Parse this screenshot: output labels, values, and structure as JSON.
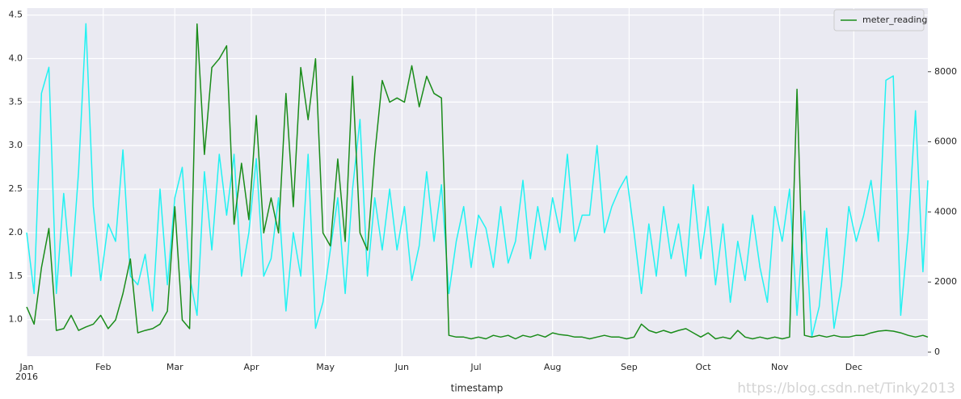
{
  "chart_data": {
    "type": "line",
    "xlabel": "timestamp",
    "x_year": "2016",
    "watermark": "https://blog.csdn.net/Tinky2013",
    "x": [
      0,
      3,
      6,
      9,
      12,
      15,
      18,
      21,
      24,
      27,
      30,
      33,
      36,
      39,
      42,
      45,
      48,
      51,
      54,
      57,
      60,
      63,
      66,
      69,
      72,
      75,
      78,
      81,
      84,
      87,
      90,
      93,
      96,
      99,
      102,
      105,
      108,
      111,
      114,
      117,
      120,
      123,
      126,
      129,
      132,
      135,
      138,
      141,
      144,
      147,
      150,
      153,
      156,
      159,
      162,
      165,
      168,
      171,
      174,
      177,
      180,
      183,
      186,
      189,
      192,
      195,
      198,
      201,
      204,
      207,
      210,
      213,
      216,
      219,
      222,
      225,
      228,
      231,
      234,
      237,
      240,
      243,
      246,
      249,
      252,
      255,
      258,
      261,
      264,
      267,
      270,
      273,
      276,
      279,
      282,
      285,
      288,
      291,
      294,
      297,
      300,
      303,
      306,
      309,
      312,
      315,
      318,
      321,
      324,
      327,
      330,
      333,
      336,
      339,
      342,
      345,
      348,
      351,
      354,
      357,
      360,
      363,
      365
    ],
    "xlim": [
      0,
      365
    ],
    "xticks": [
      {
        "value": 0,
        "label": "Jan"
      },
      {
        "value": 31,
        "label": "Feb"
      },
      {
        "value": 60,
        "label": "Mar"
      },
      {
        "value": 91,
        "label": "Apr"
      },
      {
        "value": 121,
        "label": "May"
      },
      {
        "value": 152,
        "label": "Jun"
      },
      {
        "value": 182,
        "label": "Jul"
      },
      {
        "value": 213,
        "label": "Aug"
      },
      {
        "value": 244,
        "label": "Sep"
      },
      {
        "value": 274,
        "label": "Oct"
      },
      {
        "value": 305,
        "label": "Nov"
      },
      {
        "value": 335,
        "label": "Dec"
      }
    ],
    "ylim": [
      0.58,
      4.58
    ],
    "yticks": [
      {
        "value": 1,
        "label": "1.0"
      },
      1.5,
      {
        "value": 2,
        "label": "2.0"
      },
      2.5,
      {
        "value": 3,
        "label": "3.0"
      },
      3.5,
      {
        "value": 4,
        "label": "4.0"
      },
      4.5
    ],
    "y2lim": [
      -115,
      9815
    ],
    "y2ticks": [
      0,
      2000,
      4000,
      6000,
      8000
    ],
    "grid": true,
    "legend": "upper right",
    "series": [
      {
        "color": "#22f2f2",
        "values": [
          2.0,
          1.3,
          3.6,
          3.9,
          1.3,
          2.45,
          1.5,
          2.7,
          4.4,
          2.3,
          1.45,
          2.1,
          1.9,
          2.95,
          1.5,
          1.4,
          1.75,
          1.1,
          2.5,
          1.4,
          2.4,
          2.75,
          1.5,
          1.05,
          2.7,
          1.8,
          2.9,
          2.2,
          2.9,
          1.5,
          2.0,
          2.85,
          1.5,
          1.7,
          2.4,
          1.1,
          2.0,
          1.5,
          2.9,
          0.9,
          1.2,
          1.8,
          2.4,
          1.3,
          2.5,
          3.3,
          1.5,
          2.4,
          1.8,
          2.5,
          1.8,
          2.3,
          1.45,
          1.85,
          2.7,
          1.9,
          2.55,
          1.3,
          1.9,
          2.3,
          1.6,
          2.2,
          2.05,
          1.6,
          2.3,
          1.65,
          1.9,
          2.6,
          1.7,
          2.3,
          1.8,
          2.4,
          2.0,
          2.9,
          1.9,
          2.2,
          2.2,
          3.0,
          2.0,
          2.3,
          2.5,
          2.65,
          2.0,
          1.3,
          2.1,
          1.5,
          2.3,
          1.7,
          2.1,
          1.5,
          2.55,
          1.7,
          2.3,
          1.4,
          2.1,
          1.2,
          1.9,
          1.45,
          2.2,
          1.6,
          1.2,
          2.3,
          1.9,
          2.5,
          1.05,
          2.25,
          0.8,
          1.15,
          2.05,
          0.9,
          1.4,
          2.3,
          1.9,
          2.2,
          2.6,
          1.9,
          3.75,
          3.8,
          1.05,
          2.0,
          3.4,
          1.55,
          2.6
        ]
      },
      {
        "name": "meter_reading",
        "color": "#1a8c1a",
        "axis": "y2",
        "values": [
          1290,
          800,
          2410,
          3530,
          620,
          670,
          1050,
          620,
          720,
          800,
          1050,
          670,
          920,
          1670,
          2660,
          550,
          620,
          670,
          800,
          1170,
          4150,
          920,
          670,
          9360,
          5640,
          8120,
          8370,
          8740,
          3650,
          5390,
          3780,
          6750,
          3400,
          4400,
          3400,
          7380,
          4150,
          8120,
          6630,
          8370,
          3400,
          3030,
          5510,
          3160,
          7870,
          3400,
          2910,
          5640,
          7750,
          7130,
          7250,
          7130,
          8170,
          7000,
          7870,
          7380,
          7250,
          480,
          430,
          430,
          380,
          430,
          380,
          480,
          430,
          480,
          380,
          480,
          430,
          500,
          430,
          550,
          500,
          480,
          430,
          430,
          380,
          430,
          480,
          430,
          430,
          380,
          430,
          800,
          620,
          550,
          620,
          550,
          620,
          670,
          550,
          430,
          550,
          380,
          430,
          380,
          620,
          430,
          380,
          430,
          380,
          430,
          380,
          430,
          7500,
          480,
          430,
          480,
          430,
          480,
          430,
          430,
          480,
          480,
          550,
          600,
          620,
          600,
          550,
          480,
          430,
          480,
          430
        ]
      }
    ]
  }
}
